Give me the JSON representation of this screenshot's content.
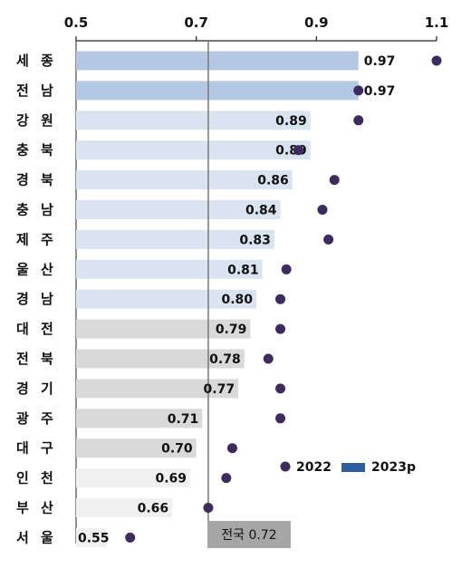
{
  "chart_data": {
    "type": "bar",
    "orientation": "horizontal",
    "xlim": [
      0.5,
      1.1
    ],
    "xticks": [
      "0.5",
      "0.7",
      "0.9",
      "1.1"
    ],
    "categories": [
      "세 종",
      "전 남",
      "강 원",
      "충 북",
      "경 북",
      "충 남",
      "제 주",
      "울 산",
      "경 남",
      "대 전",
      "전 북",
      "경 기",
      "광 주",
      "대 구",
      "인 천",
      "부 산",
      "서 울"
    ],
    "series": [
      {
        "name": "2023p",
        "values": [
          0.97,
          0.97,
          0.89,
          0.89,
          0.86,
          0.84,
          0.83,
          0.81,
          0.8,
          0.79,
          0.78,
          0.77,
          0.71,
          0.7,
          0.69,
          0.66,
          0.55
        ],
        "labels": [
          "0.97",
          "0.97",
          "0.89",
          "0.89",
          "0.86",
          "0.84",
          "0.83",
          "0.81",
          "0.80",
          "0.79",
          "0.78",
          "0.77",
          "0.71",
          "0.70",
          "0.69",
          "0.66",
          "0.55"
        ],
        "bar_colors": [
          "#b4c8e4",
          "#b4c8e4",
          "#dae4f1",
          "#dae4f1",
          "#dae4f1",
          "#dae4f1",
          "#dae4f1",
          "#dae4f1",
          "#dae4f1",
          "#d9d9d9",
          "#d9d9d9",
          "#d9d9d9",
          "#d9d9d9",
          "#d9d9d9",
          "#f0f0f0",
          "#f0f0f0",
          "#f0f0f0"
        ]
      },
      {
        "name": "2022",
        "values": [
          1.1,
          0.97,
          0.97,
          0.87,
          0.93,
          0.91,
          0.92,
          0.85,
          0.84,
          0.84,
          0.82,
          0.84,
          0.84,
          0.76,
          0.75,
          0.72,
          0.59
        ]
      }
    ],
    "reference_line": {
      "value": 0.72,
      "label": "전국 0.72"
    },
    "legend": {
      "position": "bottom-right",
      "items": [
        "2022",
        "2023p"
      ]
    },
    "grid": false,
    "colors": {
      "dot": "#3d2b5e",
      "legend_bar": "#2f5d9e",
      "ref_line": "#7f7f7f",
      "ref_box": "#a6a6a6",
      "axis": "#222222"
    }
  }
}
